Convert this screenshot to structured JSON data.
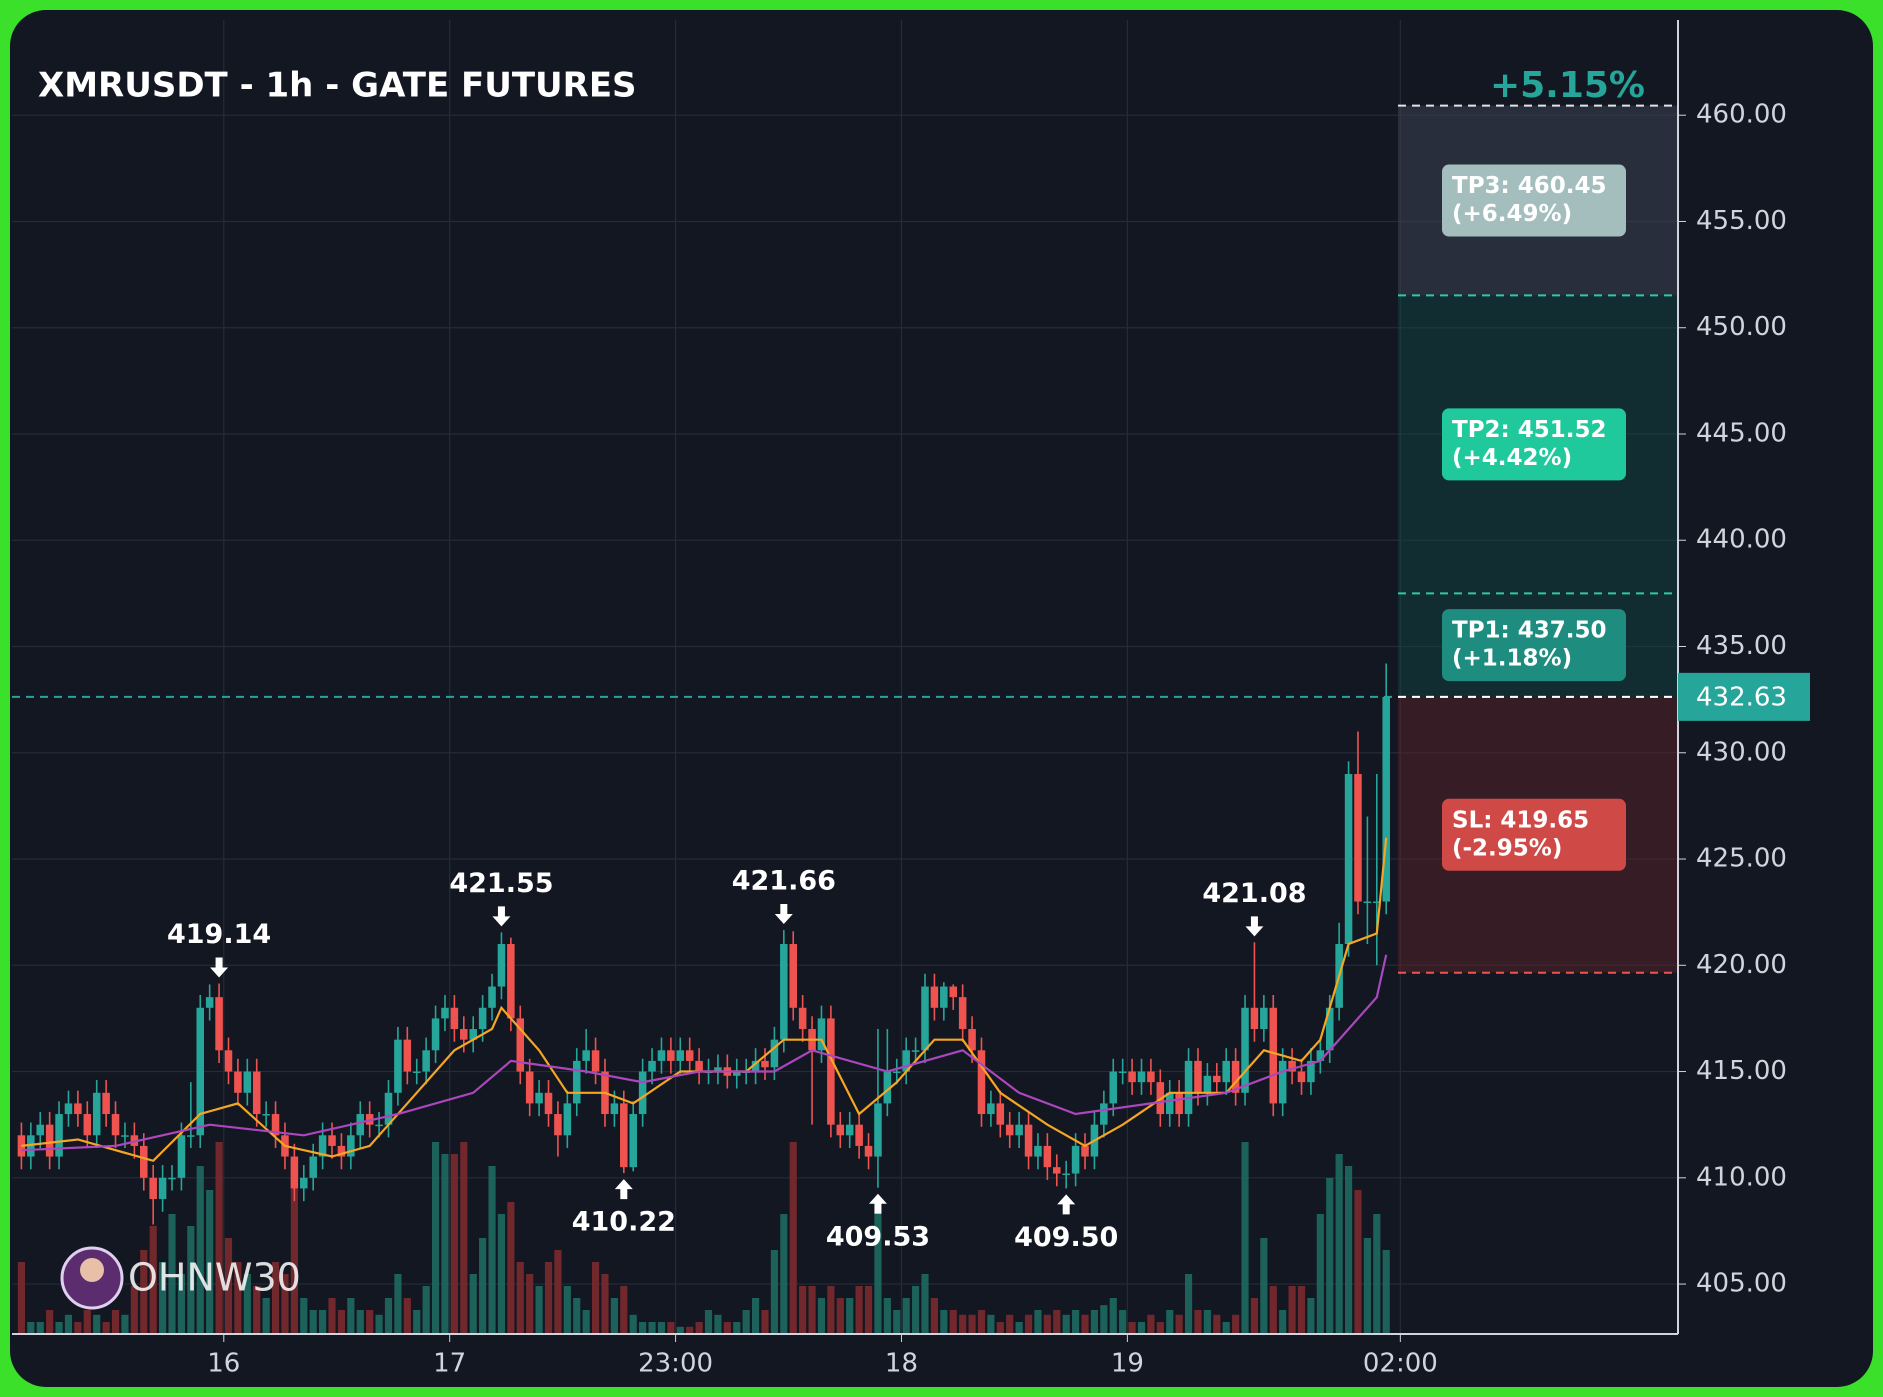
{
  "chart_data": {
    "type": "candlestick",
    "title": "XMRUSDT - 1h - GATE FUTURES",
    "change_label": "+5.15%",
    "watermark": "OHNW30",
    "xlim": [
      -1,
      176
    ],
    "xticks": [
      {
        "value": 21.5,
        "label": "16"
      },
      {
        "value": 45.5,
        "label": "17"
      },
      {
        "value": 69.5,
        "label": "23:00"
      },
      {
        "value": 93.5,
        "label": "18"
      },
      {
        "value": 117.5,
        "label": "19"
      },
      {
        "value": 146.5,
        "label": "02:00"
      }
    ],
    "ylim": [
      402.65,
      464.48
    ],
    "yticks": [
      {
        "value": 405,
        "label": "405.00"
      },
      {
        "value": 410,
        "label": "410.00"
      },
      {
        "value": 415,
        "label": "415.00"
      },
      {
        "value": 420,
        "label": "420.00"
      },
      {
        "value": 425,
        "label": "425.00"
      },
      {
        "value": 430,
        "label": "430.00"
      },
      {
        "value": 435,
        "label": "435.00"
      },
      {
        "value": 440,
        "label": "440.00"
      },
      {
        "value": 445,
        "label": "445.00"
      },
      {
        "value": 450,
        "label": "450.00"
      },
      {
        "value": 455,
        "label": "455.00"
      },
      {
        "value": 460,
        "label": "460.00"
      }
    ],
    "grid": true,
    "up_color": "#26a69a",
    "down_color": "#ef5350",
    "open": [
      412,
      411,
      412,
      412.5,
      411,
      413,
      413.5,
      413,
      412,
      414,
      413,
      412,
      412,
      411.5,
      410,
      409,
      410,
      410,
      412,
      412,
      418,
      418.5,
      416,
      415,
      414,
      415,
      413,
      413,
      412,
      411,
      409.5,
      410,
      411,
      412,
      411.5,
      411,
      412,
      413,
      412.5,
      412.5,
      414,
      416.5,
      415,
      415,
      416,
      417.5,
      418,
      417,
      416.5,
      417,
      418,
      419,
      421,
      417.5,
      415,
      413.5,
      414,
      413,
      412,
      413.5,
      415.5,
      416,
      415,
      413,
      413.5,
      410.5,
      413,
      415,
      415.5,
      416,
      415.5,
      416,
      415.5,
      415,
      415,
      415.2,
      414.8,
      415,
      415,
      415.5,
      415.2,
      416.5,
      421,
      418,
      417,
      416,
      417.5,
      412.5,
      412,
      412.5,
      411.5,
      411,
      413.5,
      415,
      415,
      416,
      416,
      419,
      418,
      419,
      418.5,
      417,
      416,
      413,
      413.5,
      412.5,
      412,
      412.5,
      411,
      411.5,
      410.5,
      410.2,
      410.2,
      411.5,
      411,
      412.5,
      413.5,
      415,
      415,
      414.5,
      415,
      414.5,
      413,
      414,
      413,
      415.5,
      414,
      414.8,
      414.5,
      415.5,
      414,
      418,
      417,
      418,
      413.5,
      415.5,
      415,
      414.5,
      415.5,
      416,
      418,
      421,
      429,
      423,
      423,
      423
    ],
    "high": [
      412.6,
      412.6,
      413.1,
      413.1,
      413.6,
      414.1,
      414.1,
      413.6,
      414.6,
      414.6,
      413.6,
      412.6,
      412.6,
      412.1,
      410.6,
      410.6,
      410.6,
      412.6,
      414.5,
      418.6,
      419.1,
      419.14,
      416.6,
      415.6,
      415.6,
      415.6,
      413.6,
      413.6,
      412.6,
      411.6,
      410.6,
      411.6,
      412.6,
      412.6,
      412.1,
      412.6,
      413.6,
      413.6,
      413.1,
      414.6,
      417.1,
      417.1,
      415.6,
      416.6,
      418.1,
      418.6,
      418.6,
      417.6,
      417.6,
      418.6,
      419.6,
      421.55,
      421.3,
      418.1,
      415.6,
      414.6,
      414.6,
      413.6,
      414.1,
      416.1,
      417,
      416.6,
      415.6,
      414.1,
      414.1,
      413.6,
      415.6,
      416.1,
      416.6,
      416.6,
      416.6,
      416.6,
      416.1,
      415.6,
      415.8,
      415.8,
      415.6,
      415.6,
      416.1,
      416.1,
      417.1,
      421.66,
      421.6,
      418.6,
      417.6,
      418.1,
      418.1,
      413.1,
      413.1,
      413.1,
      412.1,
      417,
      417,
      415.6,
      416.6,
      416.6,
      419.6,
      419.6,
      419.2,
      419.1,
      419.1,
      417.6,
      416.6,
      414.1,
      414.1,
      413.1,
      413.1,
      413.1,
      412.1,
      412.1,
      411.1,
      410.8,
      412.1,
      412.1,
      413.1,
      414.1,
      415.6,
      415.6,
      415.6,
      415.6,
      415.6,
      415.1,
      414.6,
      414.6,
      416.1,
      416.1,
      415.4,
      415.4,
      416.1,
      416.1,
      418.6,
      421.08,
      418.6,
      418.6,
      416.1,
      416.1,
      415.6,
      416.1,
      416.6,
      418.6,
      422,
      429.6,
      431,
      427,
      429,
      434.2
    ],
    "low": [
      410.4,
      410.4,
      411.4,
      410.4,
      410.4,
      412.4,
      412.4,
      411.4,
      411.4,
      412.4,
      411.4,
      411.4,
      410.9,
      409.4,
      407.8,
      408.4,
      409.4,
      409.4,
      411.4,
      411.4,
      417.4,
      415.4,
      414.4,
      413.4,
      413.4,
      412.4,
      412.4,
      411.4,
      410.4,
      408.9,
      408.9,
      409.4,
      410.4,
      410.9,
      410.4,
      410.4,
      411.4,
      411.9,
      411.9,
      411.9,
      413.4,
      414.4,
      414.4,
      414.4,
      415.4,
      416.9,
      416.4,
      415.9,
      415.9,
      416.4,
      417.4,
      418.4,
      416.9,
      414.4,
      412.9,
      412.9,
      412.4,
      411,
      411.4,
      412.9,
      414.9,
      414.4,
      412.4,
      412.4,
      410.22,
      410.3,
      412.4,
      414.4,
      414.9,
      414.9,
      414.9,
      414.9,
      414.4,
      414.4,
      414.4,
      414.2,
      414.2,
      414.4,
      414.4,
      414.6,
      414.6,
      415.9,
      417.4,
      416.4,
      412.5,
      415.4,
      411.9,
      411.4,
      411.4,
      410.9,
      410.4,
      409.53,
      412.9,
      414.4,
      414.4,
      415.4,
      415.4,
      417.4,
      417.4,
      417.9,
      416.4,
      415.4,
      412.4,
      412.4,
      411.9,
      411.4,
      411.4,
      410.4,
      410.4,
      409.9,
      409.6,
      409.5,
      409.6,
      410.4,
      410.4,
      411.9,
      412.9,
      414.4,
      413.9,
      413.9,
      413.9,
      412.4,
      412.4,
      412.4,
      412.4,
      413.4,
      413.4,
      413.9,
      413.9,
      413.4,
      413.4,
      416.4,
      416.4,
      412.9,
      412.9,
      414.4,
      413.9,
      413.9,
      414.9,
      415.4,
      417.4,
      420.4,
      422.4,
      421,
      420,
      422.4
    ],
    "close": [
      411,
      412,
      412.5,
      411,
      413,
      413.5,
      413,
      412,
      414,
      413,
      412,
      412,
      411.5,
      410,
      409,
      410,
      410,
      412,
      412,
      418,
      418.5,
      416,
      415,
      414,
      415,
      413,
      413,
      412,
      411,
      409.5,
      410,
      411,
      412,
      411.5,
      411,
      412,
      413,
      412.5,
      412.5,
      414,
      416.5,
      415,
      415,
      416,
      417.5,
      418,
      417,
      416.5,
      417,
      418,
      419,
      421,
      417.5,
      415,
      413.5,
      414,
      413,
      412,
      413.5,
      415.5,
      416,
      415,
      413,
      413.5,
      410.5,
      413,
      415,
      415.5,
      416,
      415.5,
      416,
      415.5,
      415,
      415,
      415.2,
      414.8,
      415,
      415,
      415.5,
      415.2,
      416.5,
      421,
      418,
      417,
      416,
      417.5,
      412.5,
      412,
      412.5,
      411.5,
      411,
      413.5,
      415,
      415,
      416,
      416,
      419,
      418,
      419,
      418.5,
      417,
      416,
      413,
      413.5,
      412.5,
      412,
      412.5,
      411,
      411.5,
      410.5,
      410.2,
      410.2,
      411.5,
      411,
      412.5,
      413.5,
      415,
      415,
      414.5,
      415,
      414.5,
      413,
      414,
      413,
      415.5,
      414,
      414.8,
      414.5,
      415.5,
      414,
      418,
      417,
      418,
      413.5,
      415.5,
      415,
      414.5,
      415.5,
      416,
      418,
      421,
      429,
      423,
      423,
      423,
      432.63
    ],
    "volume": [
      30,
      5,
      5,
      10,
      5,
      8,
      5,
      10,
      8,
      5,
      10,
      8,
      20,
      35,
      45,
      30,
      50,
      25,
      45,
      70,
      60,
      80,
      40,
      30,
      25,
      20,
      15,
      30,
      25,
      65,
      15,
      10,
      10,
      15,
      10,
      15,
      10,
      10,
      8,
      15,
      25,
      15,
      10,
      20,
      80,
      75,
      75,
      80,
      25,
      40,
      70,
      50,
      55,
      30,
      25,
      20,
      30,
      35,
      20,
      15,
      10,
      30,
      25,
      15,
      20,
      8,
      5,
      5,
      5,
      5,
      3,
      3,
      5,
      10,
      8,
      5,
      5,
      10,
      15,
      10,
      35,
      50,
      80,
      20,
      20,
      15,
      20,
      15,
      15,
      20,
      20,
      50,
      15,
      10,
      15,
      20,
      25,
      15,
      10,
      10,
      8,
      8,
      10,
      8,
      5,
      8,
      5,
      8,
      10,
      8,
      10,
      8,
      10,
      8,
      10,
      12,
      15,
      10,
      5,
      5,
      8,
      5,
      10,
      8,
      25,
      10,
      10,
      8,
      5,
      8,
      80,
      15,
      40,
      20,
      10,
      20,
      20,
      15,
      50,
      65,
      75,
      70,
      60,
      40,
      50,
      35
    ],
    "volume_lim": [
      0,
      100
    ],
    "moving_averages": [
      {
        "color": "#f5a623",
        "x": [
          0,
          6,
          14,
          19,
          23,
          28,
          33,
          37,
          42,
          46,
          50,
          51,
          55,
          58,
          62,
          65,
          70,
          77,
          81,
          85,
          89,
          93,
          97,
          100,
          104,
          109,
          113,
          117,
          122,
          128,
          132,
          136,
          138,
          141,
          144,
          145
        ],
        "values": [
          411.5,
          411.8,
          410.8,
          413,
          413.5,
          411.5,
          411,
          411.5,
          414,
          416,
          417,
          418,
          416,
          414,
          414,
          413.5,
          415,
          415,
          416.5,
          416.5,
          413,
          414.5,
          416.5,
          416.5,
          414,
          412.5,
          411.5,
          412.5,
          414,
          414,
          416,
          415.5,
          416.5,
          421,
          421.5,
          426
        ]
      },
      {
        "color": "#ab47bc",
        "x": [
          0,
          10,
          20,
          30,
          40,
          48,
          52,
          60,
          66,
          72,
          80,
          84,
          92,
          100,
          106,
          112,
          120,
          128,
          134,
          138,
          141,
          144,
          145
        ],
        "values": [
          411.3,
          411.5,
          412.5,
          412,
          413,
          414,
          415.5,
          415,
          414.5,
          415,
          415,
          416,
          415,
          416,
          414,
          413,
          413.5,
          414,
          415,
          415.5,
          417,
          418.5,
          420.5
        ]
      }
    ],
    "annotations": [
      {
        "index": 21,
        "value": 419.14,
        "kind": "high"
      },
      {
        "index": 51,
        "value": 421.55,
        "kind": "high"
      },
      {
        "index": 81,
        "value": 421.66,
        "kind": "high"
      },
      {
        "index": 131,
        "value": 421.08,
        "kind": "high"
      },
      {
        "index": 64,
        "value": 410.22,
        "kind": "low"
      },
      {
        "index": 91,
        "value": 409.53,
        "kind": "low"
      },
      {
        "index": 111,
        "value": 409.5,
        "label": "409.50",
        "kind": "low"
      }
    ],
    "current_price": 432.63,
    "current_color": "#26a69a",
    "targets": [
      {
        "name": "TP3: 460.45",
        "change": "(+6.49%)",
        "price": 460.45,
        "color": "#a4bebe"
      },
      {
        "name": "TP2: 451.52",
        "change": "(+4.42%)",
        "price": 451.52,
        "color": "#1fc99b"
      },
      {
        "name": "TP1: 437.50",
        "change": "(+1.18%)",
        "price": 437.5,
        "color": "#1f8c80"
      }
    ],
    "stop": {
      "name": "SL: 419.65",
      "change": "(-2.95%)",
      "price": 419.65,
      "color": "#cf4a47"
    }
  }
}
